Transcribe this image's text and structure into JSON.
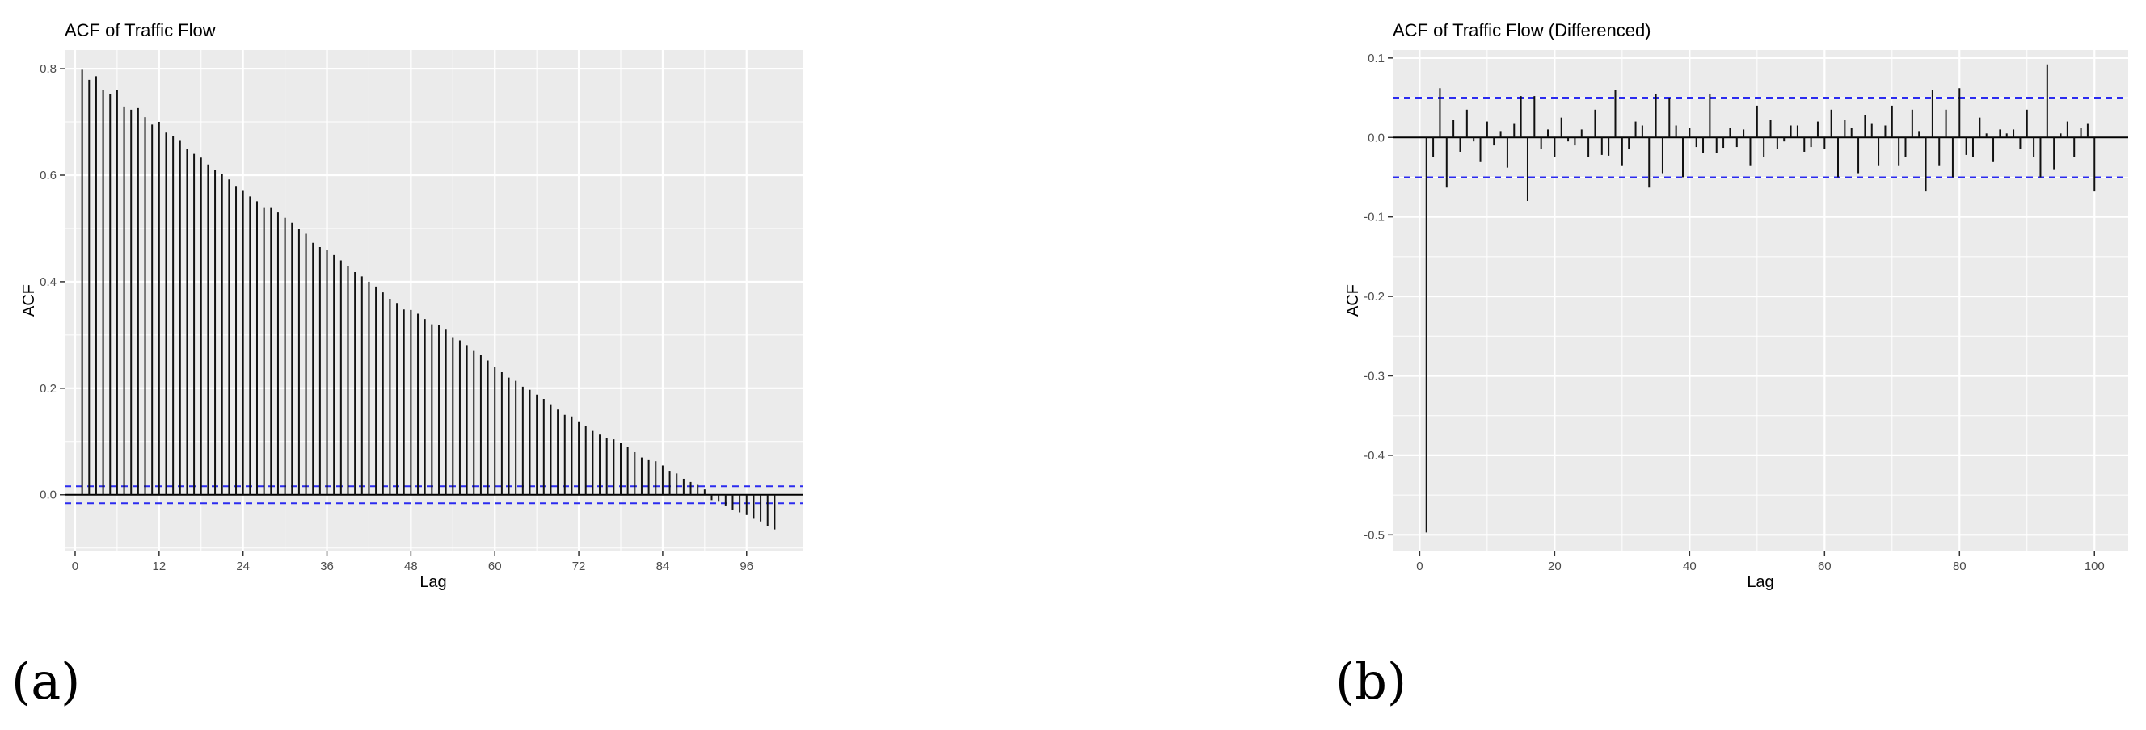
{
  "chart_data": [
    {
      "type": "bar",
      "panel_label": "(a)",
      "title": "ACF of Traffic Flow",
      "xlabel": "Lag",
      "ylabel": "ACF",
      "xlim": [
        -1.5,
        104
      ],
      "ylim": [
        -0.105,
        0.835
      ],
      "xticks": [
        0,
        12,
        24,
        36,
        48,
        60,
        72,
        84,
        96
      ],
      "yticks": [
        0.0,
        0.2,
        0.4,
        0.6,
        0.8
      ],
      "ytick_labels": [
        "0.0",
        "0.2",
        "0.4",
        "0.6",
        "0.8"
      ],
      "confidence_bound": 0.016,
      "grid": true,
      "x": [
        1,
        2,
        3,
        4,
        5,
        6,
        7,
        8,
        9,
        10,
        11,
        12,
        13,
        14,
        15,
        16,
        17,
        18,
        19,
        20,
        21,
        22,
        23,
        24,
        25,
        26,
        27,
        28,
        29,
        30,
        31,
        32,
        33,
        34,
        35,
        36,
        37,
        38,
        39,
        40,
        41,
        42,
        43,
        44,
        45,
        46,
        47,
        48,
        49,
        50,
        51,
        52,
        53,
        54,
        55,
        56,
        57,
        58,
        59,
        60,
        61,
        62,
        63,
        64,
        65,
        66,
        67,
        68,
        69,
        70,
        71,
        72,
        73,
        74,
        75,
        76,
        77,
        78,
        79,
        80,
        81,
        82,
        83,
        84,
        85,
        86,
        87,
        88,
        89,
        90,
        91,
        92,
        93,
        94,
        95,
        96,
        97,
        98,
        99,
        100
      ],
      "values": [
        0.798,
        0.779,
        0.786,
        0.76,
        0.752,
        0.76,
        0.729,
        0.723,
        0.726,
        0.709,
        0.695,
        0.7,
        0.68,
        0.673,
        0.666,
        0.65,
        0.64,
        0.633,
        0.62,
        0.61,
        0.602,
        0.592,
        0.58,
        0.572,
        0.56,
        0.551,
        0.54,
        0.54,
        0.53,
        0.52,
        0.511,
        0.5,
        0.49,
        0.473,
        0.465,
        0.46,
        0.45,
        0.44,
        0.43,
        0.418,
        0.41,
        0.4,
        0.391,
        0.38,
        0.368,
        0.36,
        0.348,
        0.347,
        0.34,
        0.33,
        0.32,
        0.318,
        0.31,
        0.296,
        0.29,
        0.281,
        0.27,
        0.262,
        0.252,
        0.24,
        0.23,
        0.22,
        0.214,
        0.203,
        0.197,
        0.188,
        0.18,
        0.17,
        0.16,
        0.15,
        0.147,
        0.138,
        0.13,
        0.12,
        0.113,
        0.107,
        0.104,
        0.097,
        0.09,
        0.08,
        0.07,
        0.065,
        0.063,
        0.055,
        0.045,
        0.04,
        0.03,
        0.024,
        0.02,
        0.01,
        -0.01,
        -0.013,
        -0.02,
        -0.028,
        -0.033,
        -0.038,
        -0.045,
        -0.05,
        -0.058,
        -0.065
      ]
    },
    {
      "type": "bar",
      "panel_label": "(b)",
      "title": "ACF of Traffic Flow (Differenced)",
      "xlabel": "Lag",
      "ylabel": "ACF",
      "xlim": [
        -4,
        105
      ],
      "ylim": [
        -0.52,
        0.11
      ],
      "xticks": [
        0,
        20,
        40,
        60,
        80,
        100
      ],
      "yticks": [
        -0.5,
        -0.4,
        -0.3,
        -0.2,
        -0.1,
        0.0,
        0.1
      ],
      "ytick_labels": [
        "-0.5",
        "-0.4",
        "-0.3",
        "-0.2",
        "-0.1",
        "0.0",
        "0.1"
      ],
      "confidence_bound": 0.05,
      "grid": true,
      "x": [
        1,
        2,
        3,
        4,
        5,
        6,
        7,
        8,
        9,
        10,
        11,
        12,
        13,
        14,
        15,
        16,
        17,
        18,
        19,
        20,
        21,
        22,
        23,
        24,
        25,
        26,
        27,
        28,
        29,
        30,
        31,
        32,
        33,
        34,
        35,
        36,
        37,
        38,
        39,
        40,
        41,
        42,
        43,
        44,
        45,
        46,
        47,
        48,
        49,
        50,
        51,
        52,
        53,
        54,
        55,
        56,
        57,
        58,
        59,
        60,
        61,
        62,
        63,
        64,
        65,
        66,
        67,
        68,
        69,
        70,
        71,
        72,
        73,
        74,
        75,
        76,
        77,
        78,
        79,
        80,
        81,
        82,
        83,
        84,
        85,
        86,
        87,
        88,
        89,
        90,
        91,
        92,
        93,
        94,
        95,
        96,
        97,
        98,
        99,
        100
      ],
      "values": [
        -0.497,
        -0.025,
        0.062,
        -0.063,
        0.022,
        -0.018,
        0.035,
        -0.005,
        -0.03,
        0.02,
        -0.01,
        0.008,
        -0.038,
        0.018,
        0.052,
        -0.08,
        0.052,
        -0.015,
        0.01,
        -0.025,
        0.025,
        -0.005,
        -0.01,
        0.01,
        -0.025,
        0.035,
        -0.022,
        -0.023,
        0.06,
        -0.035,
        -0.015,
        0.02,
        0.015,
        -0.063,
        0.055,
        -0.045,
        0.05,
        0.015,
        -0.05,
        0.012,
        -0.012,
        -0.02,
        0.055,
        -0.02,
        -0.013,
        0.012,
        -0.012,
        0.01,
        -0.035,
        0.04,
        -0.025,
        0.022,
        -0.015,
        -0.005,
        0.015,
        0.015,
        -0.018,
        -0.012,
        0.02,
        -0.015,
        0.035,
        -0.05,
        0.022,
        0.012,
        -0.045,
        0.028,
        0.018,
        -0.035,
        0.015,
        0.04,
        -0.035,
        -0.025,
        0.035,
        0.008,
        -0.068,
        0.06,
        -0.035,
        0.035,
        -0.05,
        0.062,
        -0.022,
        -0.025,
        0.025,
        0.005,
        -0.03,
        0.01,
        0.005,
        0.01,
        -0.015,
        0.035,
        -0.025,
        -0.05,
        0.092,
        -0.04,
        0.005,
        0.02,
        -0.025,
        0.012,
        0.018,
        -0.068
      ]
    }
  ]
}
